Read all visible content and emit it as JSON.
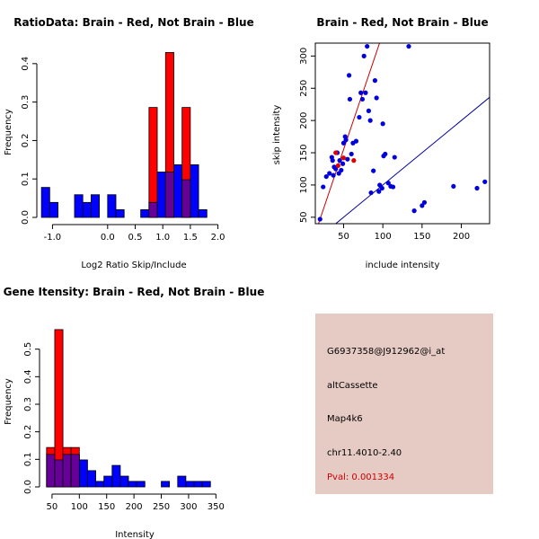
{
  "charts": {
    "ratio": {
      "title": "RatioData: Brain - Red, Not Brain - Blue",
      "xlabel": "Log2 Ratio Skip/Include",
      "ylabel": "Frequency"
    },
    "scatter": {
      "title": "Brain - Red, Not Brain - Blue",
      "xlabel": "include intensity",
      "ylabel": "skip intensity"
    },
    "gene": {
      "title": "Gene Itensity: Brain - Red, Not Brain - Blue",
      "xlabel": "Intensity",
      "ylabel": "Frequency"
    }
  },
  "info": {
    "probe": "G6937358@J912962@i_at",
    "event": "altCassette",
    "gene": "Map4k6",
    "location": "chr11.4010-2.40",
    "pval": "Pval: 0.001334"
  },
  "colors": {
    "red": "#ff0000",
    "blue": "#0000ff",
    "overlap": "#660099",
    "panel": "#e6cac4"
  },
  "chart_data": [
    {
      "type": "bar",
      "name": "ratio-histogram",
      "title": "RatioData: Brain - Red, Not Brain - Blue",
      "xlabel": "Log2 Ratio Skip/Include",
      "ylabel": "Frequency",
      "xlim": [
        -1.3,
        2.3
      ],
      "ylim": [
        0,
        0.43
      ],
      "xticks": [
        -1.0,
        0.0,
        0.5,
        1.0,
        1.5,
        2.0
      ],
      "xtick_labels": [
        "-1.0",
        "0.0",
        "0.5",
        "1.0",
        "1.5",
        "2.0"
      ],
      "yticks": [
        0,
        0.1,
        0.2,
        0.3,
        0.4
      ],
      "ytick_labels": [
        "0.0",
        "0.1",
        "0.2",
        "0.3",
        "0.4"
      ],
      "bin_width": 0.15,
      "series": [
        {
          "name": "Not Brain",
          "color": "blue",
          "bins": [
            [
              -1.2,
              0.078
            ],
            [
              -1.05,
              0.039
            ],
            [
              -0.6,
              0.059
            ],
            [
              -0.45,
              0.039
            ],
            [
              -0.3,
              0.059
            ],
            [
              0.0,
              0.059
            ],
            [
              0.15,
              0.02
            ],
            [
              0.6,
              0.02
            ],
            [
              0.75,
              0.039
            ],
            [
              0.9,
              0.118
            ],
            [
              1.05,
              0.118
            ],
            [
              1.2,
              0.137
            ],
            [
              1.35,
              0.098
            ],
            [
              1.5,
              0.137
            ],
            [
              1.65,
              0.02
            ]
          ]
        },
        {
          "name": "Brain",
          "color": "red",
          "bins": [
            [
              0.75,
              0.286
            ],
            [
              1.05,
              0.429
            ],
            [
              1.35,
              0.286
            ]
          ]
        }
      ]
    },
    {
      "type": "scatter",
      "name": "intensity-scatter",
      "title": "Brain - Red, Not Brain - Blue",
      "xlabel": "include intensity",
      "ylabel": "skip intensity",
      "xlim": [
        14,
        236
      ],
      "ylim": [
        40,
        320
      ],
      "xticks": [
        50,
        100,
        150,
        200
      ],
      "yticks": [
        50,
        100,
        150,
        200,
        250,
        300
      ],
      "series": [
        {
          "name": "Not Brain",
          "color": "blue",
          "points": [
            [
              20,
              47
            ],
            [
              24,
              97
            ],
            [
              28,
              113
            ],
            [
              32,
              118
            ],
            [
              35,
              143
            ],
            [
              36,
              138
            ],
            [
              37,
              115
            ],
            [
              38,
              128
            ],
            [
              40,
              125
            ],
            [
              42,
              150
            ],
            [
              44,
              118
            ],
            [
              45,
              138
            ],
            [
              47,
              123
            ],
            [
              49,
              133
            ],
            [
              50,
              165
            ],
            [
              52,
              175
            ],
            [
              53,
              170
            ],
            [
              55,
              140
            ],
            [
              57,
              270
            ],
            [
              58,
              233
            ],
            [
              60,
              148
            ],
            [
              62,
              165
            ],
            [
              66,
              168
            ],
            [
              70,
              205
            ],
            [
              72,
              243
            ],
            [
              74,
              233
            ],
            [
              76,
              300
            ],
            [
              78,
              243
            ],
            [
              80,
              315
            ],
            [
              82,
              215
            ],
            [
              84,
              200
            ],
            [
              88,
              122
            ],
            [
              90,
              262
            ],
            [
              92,
              235
            ],
            [
              95,
              90
            ],
            [
              96,
              100
            ],
            [
              99,
              95
            ],
            [
              101,
              145
            ],
            [
              103,
              148
            ],
            [
              100,
              195
            ],
            [
              107,
              103
            ],
            [
              110,
              98
            ],
            [
              113,
              97
            ],
            [
              115,
              143
            ],
            [
              85,
              88
            ],
            [
              133,
              315
            ],
            [
              140,
              60
            ],
            [
              150,
              68
            ],
            [
              153,
              73
            ],
            [
              190,
              98
            ],
            [
              220,
              95
            ],
            [
              230,
              105
            ]
          ]
        },
        {
          "name": "Brain",
          "color": "red",
          "points": [
            [
              40,
              150
            ],
            [
              43,
              130
            ],
            [
              50,
              142
            ],
            [
              63,
              138
            ]
          ]
        }
      ],
      "lines": [
        {
          "name": "brain-fit",
          "color": "red",
          "slope": 3.6,
          "intercept": -25
        },
        {
          "name": "identity",
          "color": "blue",
          "slope": 1,
          "intercept": 0
        }
      ]
    },
    {
      "type": "bar",
      "name": "gene-intensity-histogram",
      "title": "Gene Itensity: Brain - Red, Not Brain - Blue",
      "xlabel": "Intensity",
      "ylabel": "Frequency",
      "xlim": [
        37,
        356
      ],
      "ylim": [
        0,
        0.6
      ],
      "xticks": [
        50,
        100,
        150,
        200,
        250,
        300,
        350
      ],
      "yticks": [
        0,
        0.1,
        0.2,
        0.3,
        0.4,
        0.5
      ],
      "ytick_labels": [
        "0.0",
        "0.1",
        "0.2",
        "0.3",
        "0.4",
        "0.5"
      ],
      "bin_width": 15,
      "series": [
        {
          "name": "Not Brain",
          "color": "blue",
          "bins": [
            [
              40,
              0.118
            ],
            [
              55,
              0.098
            ],
            [
              70,
              0.118
            ],
            [
              85,
              0.118
            ],
            [
              100,
              0.098
            ],
            [
              115,
              0.059
            ],
            [
              130,
              0.02
            ],
            [
              145,
              0.039
            ],
            [
              160,
              0.078
            ],
            [
              175,
              0.039
            ],
            [
              190,
              0.02
            ],
            [
              205,
              0.02
            ],
            [
              250,
              0.02
            ],
            [
              280,
              0.039
            ],
            [
              295,
              0.02
            ],
            [
              310,
              0.02
            ],
            [
              325,
              0.02
            ]
          ]
        },
        {
          "name": "Brain",
          "color": "red",
          "bins": [
            [
              40,
              0.143
            ],
            [
              55,
              0.571
            ],
            [
              70,
              0.143
            ],
            [
              85,
              0.143
            ]
          ]
        }
      ]
    }
  ]
}
